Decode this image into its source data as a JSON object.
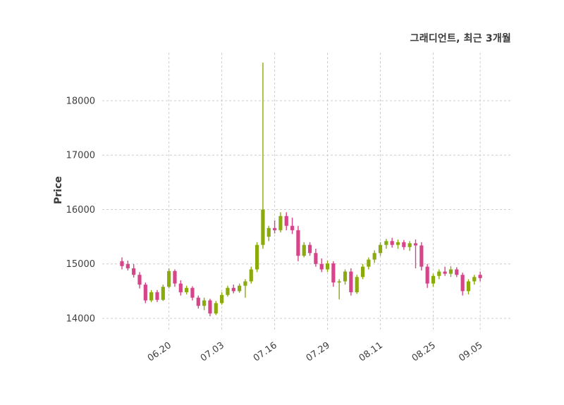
{
  "title": "그래디언트, 최근 3개월",
  "chart_data": {
    "type": "candlestick",
    "title": "그래디언트, 최근 3개월",
    "xlabel": "",
    "ylabel": "Price",
    "ylim": [
      13767,
      18880
    ],
    "yticks": [
      14000,
      15000,
      16000,
      17000,
      18000
    ],
    "xtick_labels": [
      "06.20",
      "07.03",
      "07.16",
      "07.29",
      "08.11",
      "08.25",
      "09.05"
    ],
    "xtick_indices": [
      8,
      17,
      26,
      35,
      44,
      53,
      61
    ],
    "grid": true,
    "legend_position": "none",
    "colors": {
      "up": "#8aaa0e",
      "down": "#d64489",
      "grid": "#cccccc",
      "text": "#3d3d3d",
      "background": "#ffffff"
    },
    "candles_format": [
      "open",
      "high",
      "low",
      "close"
    ],
    "candles": [
      [
        15050,
        15120,
        14900,
        14960
      ],
      [
        15000,
        15060,
        14880,
        14920
      ],
      [
        14920,
        15000,
        14750,
        14800
      ],
      [
        14800,
        14850,
        14550,
        14620
      ],
      [
        14620,
        14660,
        14280,
        14330
      ],
      [
        14330,
        14520,
        14300,
        14480
      ],
      [
        14480,
        14520,
        14300,
        14340
      ],
      [
        14340,
        14620,
        14320,
        14580
      ],
      [
        14580,
        14920,
        14550,
        14870
      ],
      [
        14870,
        14900,
        14580,
        14640
      ],
      [
        14640,
        14700,
        14420,
        14480
      ],
      [
        14480,
        14600,
        14440,
        14560
      ],
      [
        14560,
        14590,
        14330,
        14380
      ],
      [
        14380,
        14420,
        14180,
        14230
      ],
      [
        14230,
        14380,
        14150,
        14330
      ],
      [
        14330,
        14360,
        14040,
        14090
      ],
      [
        14090,
        14320,
        14060,
        14280
      ],
      [
        14280,
        14480,
        14250,
        14430
      ],
      [
        14430,
        14600,
        14400,
        14560
      ],
      [
        14560,
        14620,
        14460,
        14500
      ],
      [
        14500,
        14640,
        14470,
        14600
      ],
      [
        14600,
        14720,
        14380,
        14680
      ],
      [
        14680,
        14950,
        14640,
        14900
      ],
      [
        14900,
        15400,
        14850,
        15350
      ],
      [
        15350,
        18700,
        15280,
        16000
      ],
      [
        15500,
        15700,
        15420,
        15660
      ],
      [
        15660,
        15800,
        15560,
        15620
      ],
      [
        15620,
        15950,
        15580,
        15880
      ],
      [
        15880,
        15950,
        15620,
        15700
      ],
      [
        15700,
        15850,
        15550,
        15620
      ],
      [
        15620,
        15700,
        15050,
        15150
      ],
      [
        15150,
        15400,
        15120,
        15350
      ],
      [
        15350,
        15400,
        15150,
        15200
      ],
      [
        15200,
        15280,
        14950,
        15000
      ],
      [
        15000,
        15100,
        14850,
        14900
      ],
      [
        14900,
        15060,
        14850,
        15010
      ],
      [
        15010,
        15050,
        14580,
        14660
      ],
      [
        14660,
        14720,
        14350,
        14680
      ],
      [
        14680,
        14900,
        14620,
        14860
      ],
      [
        14860,
        14920,
        14420,
        14480
      ],
      [
        14480,
        14800,
        14450,
        14760
      ],
      [
        14760,
        15000,
        14720,
        14950
      ],
      [
        14950,
        15120,
        14900,
        15080
      ],
      [
        15080,
        15250,
        15020,
        15200
      ],
      [
        15200,
        15400,
        15150,
        15350
      ],
      [
        15350,
        15460,
        15280,
        15420
      ],
      [
        15420,
        15480,
        15300,
        15350
      ],
      [
        15350,
        15450,
        15280,
        15400
      ],
      [
        15400,
        15440,
        15260,
        15310
      ],
      [
        15310,
        15420,
        15240,
        15380
      ],
      [
        15380,
        15450,
        14920,
        15340
      ],
      [
        15340,
        15400,
        14880,
        14950
      ],
      [
        14950,
        15000,
        14560,
        14640
      ],
      [
        14640,
        14820,
        14580,
        14780
      ],
      [
        14780,
        14900,
        14720,
        14860
      ],
      [
        14860,
        14950,
        14780,
        14820
      ],
      [
        14820,
        14960,
        14760,
        14900
      ],
      [
        14900,
        14940,
        14760,
        14800
      ],
      [
        14800,
        14840,
        14420,
        14500
      ],
      [
        14500,
        14720,
        14440,
        14680
      ],
      [
        14680,
        14800,
        14620,
        14760
      ],
      [
        14800,
        14860,
        14680,
        14740
      ]
    ]
  }
}
